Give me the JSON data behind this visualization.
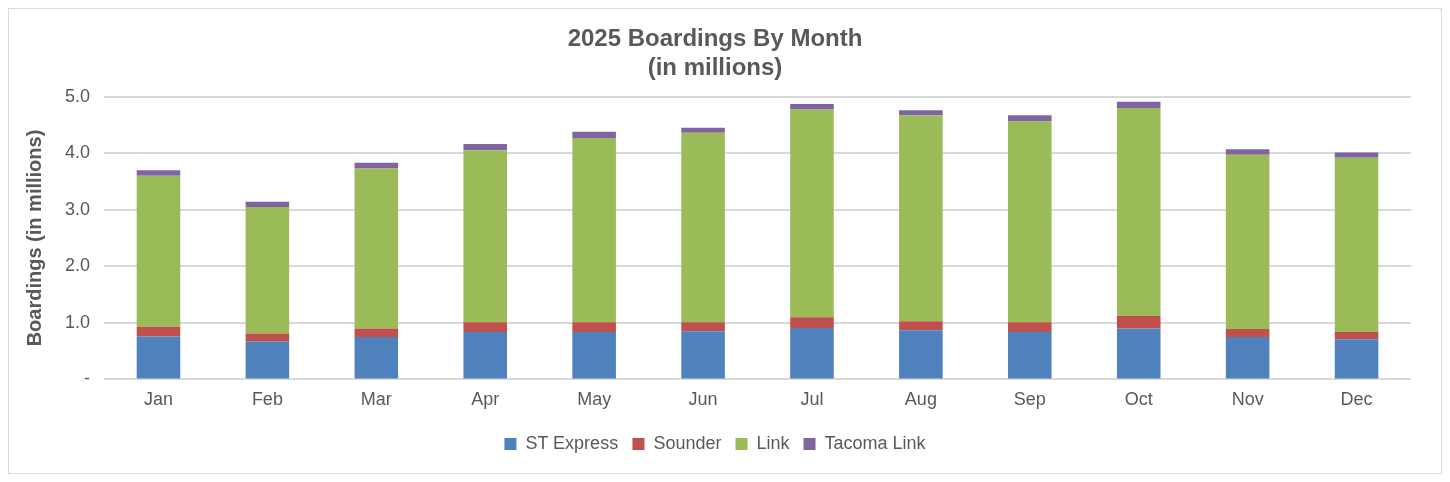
{
  "chart_data": {
    "type": "bar",
    "title": "2025 Boardings By Month",
    "subtitle": "(in millions)",
    "ylabel": "Boardings (in millions)",
    "categories": [
      "Jan",
      "Feb",
      "Mar",
      "Apr",
      "May",
      "Jun",
      "Jul",
      "Aug",
      "Sep",
      "Oct",
      "Nov",
      "Dec"
    ],
    "stacked": true,
    "series": [
      {
        "name": "ST Express",
        "color": "#4f81bd",
        "values": [
          0.76,
          0.67,
          0.75,
          0.84,
          0.84,
          0.85,
          0.91,
          0.87,
          0.84,
          0.9,
          0.75,
          0.71
        ]
      },
      {
        "name": "Sounder",
        "color": "#c0504d",
        "values": [
          0.17,
          0.14,
          0.15,
          0.17,
          0.17,
          0.16,
          0.19,
          0.16,
          0.17,
          0.22,
          0.14,
          0.13
        ]
      },
      {
        "name": "Link",
        "color": "#9bbb59",
        "values": [
          2.67,
          2.24,
          2.83,
          3.04,
          3.26,
          3.35,
          3.67,
          3.64,
          3.55,
          3.68,
          3.08,
          3.08
        ]
      },
      {
        "name": "Tacoma Link",
        "color": "#8064a2",
        "values": [
          0.1,
          0.09,
          0.1,
          0.11,
          0.11,
          0.09,
          0.1,
          0.09,
          0.11,
          0.11,
          0.1,
          0.09
        ]
      }
    ],
    "ylim": [
      0,
      5
    ],
    "yticks": [
      {
        "value": 0,
        "label": "-"
      },
      {
        "value": 1,
        "label": "1.0"
      },
      {
        "value": 2,
        "label": "2.0"
      },
      {
        "value": 3,
        "label": "3.0"
      },
      {
        "value": 4,
        "label": "4.0"
      },
      {
        "value": 5,
        "label": "5.0"
      }
    ],
    "grid": "y",
    "legend": "bottom"
  }
}
